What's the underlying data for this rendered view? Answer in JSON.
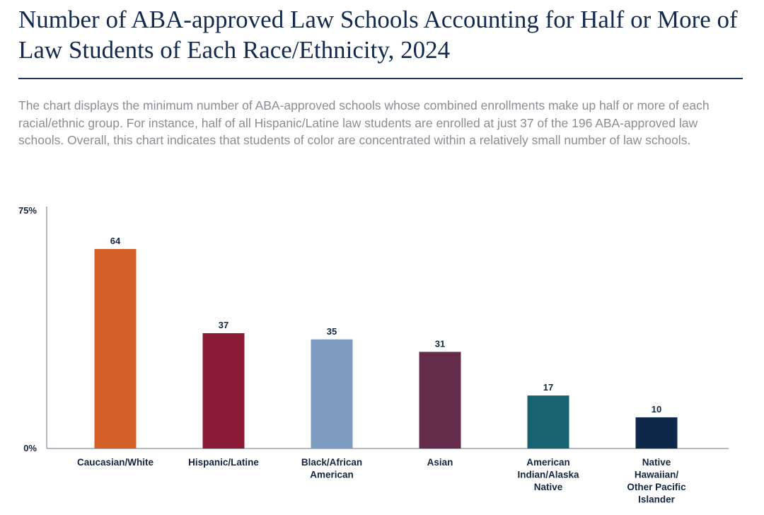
{
  "header": {
    "title": "Number of ABA-approved Law Schools Accounting for Half or More of Law Students of Each Race/Ethnicity, 2024",
    "description": "The chart displays the minimum number of ABA-approved schools whose combined enrollments make up half or more of each racial/ethnic group. For instance, half of all Hispanic/Latine law students are enrolled at just 37 of the 196 ABA-approved law schools. Overall, this chart indicates that students of color are concentrated within a relatively small number of law schools."
  },
  "chart_data": {
    "type": "bar",
    "title": "Number of ABA-approved Law Schools Accounting for Half or More of Law Students of Each Race/Ethnicity, 2024",
    "categories": [
      "Caucasian/White",
      "Hispanic/Latine",
      "Black/African American",
      "Asian",
      "American Indian/Alaska Native",
      "Native Hawaiian/ Other Pacific Islander"
    ],
    "category_lines": [
      [
        "Caucasian/White"
      ],
      [
        "Hispanic/Latine"
      ],
      [
        "Black/African",
        "American"
      ],
      [
        "Asian"
      ],
      [
        "American",
        "Indian/Alaska",
        "Native"
      ],
      [
        "Native",
        "Hawaiian/",
        "Other Pacific",
        "Islander"
      ]
    ],
    "values": [
      64,
      37,
      35,
      31,
      17,
      10
    ],
    "value_labels": [
      "64",
      "37",
      "35",
      "31",
      "17",
      "10"
    ],
    "colors": [
      "#d35f27",
      "#8b1a37",
      "#7e9cbf",
      "#642b4b",
      "#176271",
      "#0f2849"
    ],
    "y_axis": {
      "min": 0,
      "max": 75,
      "ticks": [
        {
          "value": 0,
          "label": "0%"
        },
        {
          "value": 75,
          "label": "75%"
        }
      ]
    },
    "xlabel": "",
    "ylabel": "",
    "grid": false,
    "legend": "none"
  }
}
